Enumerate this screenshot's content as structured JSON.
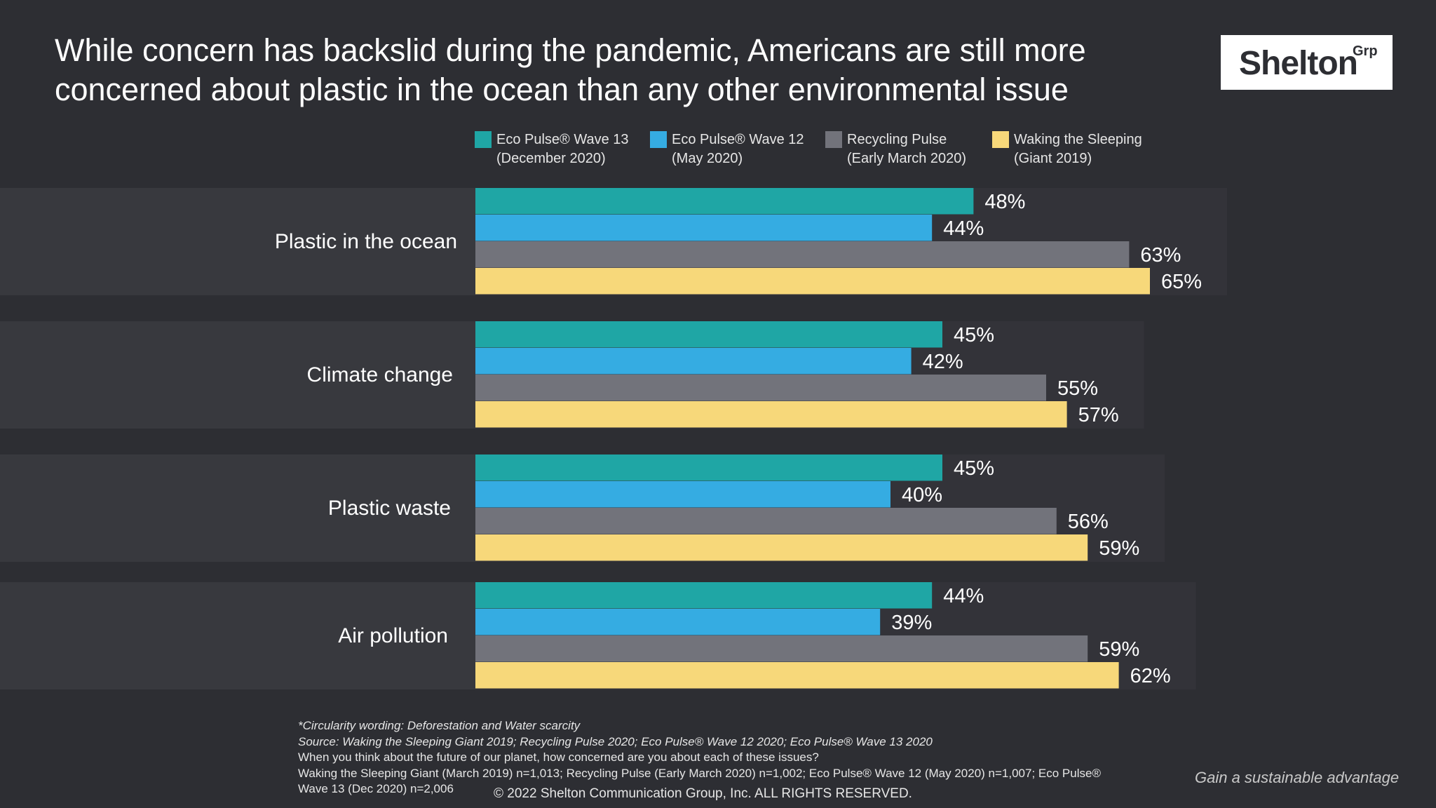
{
  "title": "While concern has backslid during the pandemic, Americans are still more concerned about plastic in the ocean than any other environmental issue",
  "logo": {
    "main": "Shelton",
    "sup": "Grp"
  },
  "colors": {
    "background": "#2d2e33",
    "band": "#38393e",
    "series": [
      "#1fa6a5",
      "#35ace2",
      "#72737b",
      "#f7d87a"
    ]
  },
  "chart_data": {
    "type": "bar",
    "orientation": "horizontal",
    "categories": [
      "Plastic in the ocean",
      "Climate change",
      "Plastic waste",
      "Air pollution"
    ],
    "series": [
      {
        "name": "Eco Pulse® Wave 13 (December 2020)",
        "legend_lines": [
          "Eco Pulse® Wave 13",
          "(December 2020)"
        ],
        "values": [
          48,
          45,
          45,
          44
        ]
      },
      {
        "name": "Eco Pulse® Wave 12 (May 2020)",
        "legend_lines": [
          "Eco Pulse® Wave 12",
          "(May 2020)"
        ],
        "values": [
          44,
          42,
          40,
          39
        ]
      },
      {
        "name": "Recycling Pulse (Early March 2020)",
        "legend_lines": [
          "Recycling Pulse",
          "(Early March 2020)"
        ],
        "values": [
          63,
          55,
          56,
          59
        ]
      },
      {
        "name": "Waking the Sleeping (Giant 2019)",
        "legend_lines": [
          "Waking the Sleeping",
          "(Giant 2019)"
        ],
        "values": [
          65,
          57,
          59,
          62
        ]
      }
    ],
    "value_suffix": "%",
    "xlim": [
      0,
      100
    ],
    "legend_position": "top"
  },
  "footnotes": {
    "line1": "*Circularity wording: Deforestation and Water scarcity",
    "line2": "Source: Waking the Sleeping Giant 2019; Recycling Pulse 2020; Eco Pulse® Wave 12 2020; Eco Pulse® Wave 13 2020",
    "line3": "When you think about the future of our planet, how concerned are you about each of these issues?",
    "line4": "Waking the Sleeping Giant (March 2019) n=1,013; Recycling Pulse (Early March 2020) n=1,002; Eco Pulse® Wave 12 (May 2020) n=1,007; Eco Pulse®",
    "line5": "Wave 13 (Dec 2020) n=2,006"
  },
  "copyright": "© 2022 Shelton Communication Group, Inc.  ALL RIGHTS RESERVED.",
  "tagline": "Gain a sustainable advantage"
}
